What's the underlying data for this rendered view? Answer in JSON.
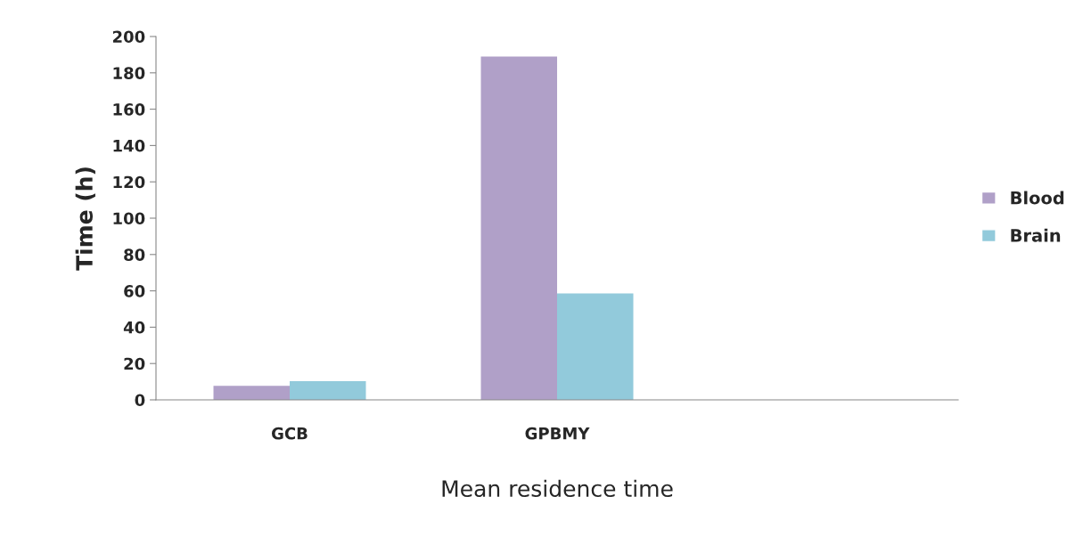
{
  "chart_data": {
    "type": "bar",
    "xlabel": "Mean residence time",
    "ylabel": "Time (h)",
    "categories": [
      "GCB",
      "GPBMY",
      null
    ],
    "series": [
      {
        "name": "Blood",
        "color": "#b0a0c8",
        "values": [
          7.7,
          189,
          null
        ]
      },
      {
        "name": "Brain",
        "color": "#92cadb",
        "values": [
          10.3,
          58.6,
          null
        ]
      }
    ],
    "ylim": [
      0,
      200
    ],
    "yticks": [
      0,
      20,
      40,
      60,
      80,
      100,
      120,
      140,
      160,
      180,
      200
    ],
    "grid": false,
    "legend": "right"
  }
}
